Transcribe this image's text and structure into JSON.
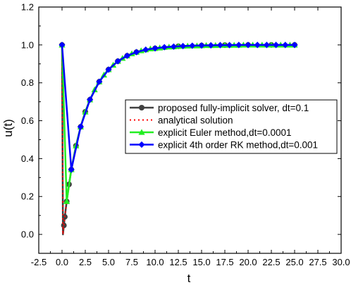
{
  "chart_data": {
    "type": "line",
    "xlabel": "t",
    "ylabel": "u(t)",
    "xlim": [
      -2.5,
      30.0
    ],
    "ylim": [
      -0.1,
      1.2
    ],
    "x_ticks": [
      "-2.5",
      "0.0",
      "2.5",
      "5.0",
      "7.5",
      "10.0",
      "12.5",
      "15.0",
      "17.5",
      "20.0",
      "22.5",
      "25.0",
      "27.5",
      "30.0"
    ],
    "y_ticks": [
      "0.0",
      "0.2",
      "0.4",
      "0.6",
      "0.8",
      "1.0",
      "1.2"
    ],
    "legend_position": "center-right",
    "series": [
      {
        "name": "proposed fully-implicit solver, dt=0.1",
        "color": "#404040",
        "line_style": "solid",
        "marker": "circle",
        "x": [
          0,
          0.1,
          0.2,
          0.3,
          0.5,
          0.75,
          1.0,
          1.5,
          2.0,
          2.5,
          3.0,
          4.0,
          5.0,
          6.0,
          7.0,
          8.0,
          10.0,
          12.5,
          15.0,
          17.5,
          20.0,
          22.5,
          25.0
        ],
        "y": [
          1.0,
          0.0,
          0.0477,
          0.0925,
          0.174,
          0.264,
          0.342,
          0.468,
          0.568,
          0.647,
          0.711,
          0.806,
          0.87,
          0.914,
          0.943,
          0.962,
          0.982,
          0.993,
          0.997,
          0.999,
          1.0,
          1.0,
          1.0
        ]
      },
      {
        "name": "analytical solution",
        "color": "#ff0000",
        "line_style": "dotted",
        "marker": "none",
        "x": [
          0,
          0.1,
          0.2,
          0.3,
          0.5,
          0.75,
          1.0,
          1.5,
          2.0,
          2.5,
          3.0,
          4.0,
          5.0,
          6.0,
          7.0,
          8.0,
          10.0,
          12.5,
          15.0,
          17.5,
          20.0,
          22.5,
          25.0
        ],
        "y": [
          1.0,
          0.0,
          0.0477,
          0.0925,
          0.174,
          0.264,
          0.342,
          0.468,
          0.568,
          0.647,
          0.711,
          0.806,
          0.87,
          0.914,
          0.943,
          0.962,
          0.982,
          0.993,
          0.997,
          0.999,
          1.0,
          1.0,
          1.0
        ]
      },
      {
        "name": "explicit Euler method,dt=0.0001",
        "color": "#22ee22",
        "line_style": "solid",
        "marker": "triangle",
        "x": [
          0,
          0.5,
          1.0,
          1.5,
          2.0,
          2.5,
          3.0,
          3.5,
          4.0,
          4.5,
          5.0,
          5.5,
          6.0,
          6.5,
          7.0,
          7.5,
          8.0,
          8.5,
          9.0,
          9.5,
          10.0,
          10.5,
          11.0,
          11.5,
          12.0,
          12.5,
          13.0,
          13.5,
          14.0,
          14.5,
          15.0,
          15.5,
          16.0,
          16.5,
          17.0,
          17.5,
          18.0,
          18.5,
          19.0,
          19.5,
          20.0,
          20.5,
          21.0,
          21.5,
          22.0,
          22.5,
          23.0,
          23.5,
          24.0,
          24.5,
          25.0
        ],
        "y": [
          1.0,
          0.174,
          0.342,
          0.468,
          0.568,
          0.647,
          0.711,
          0.764,
          0.806,
          0.842,
          0.87,
          0.894,
          0.914,
          0.93,
          0.943,
          0.954,
          0.962,
          0.97,
          0.975,
          0.98,
          0.982,
          0.985,
          0.988,
          0.99,
          0.991,
          0.993,
          0.994,
          0.995,
          0.996,
          0.996,
          0.997,
          0.998,
          0.998,
          0.998,
          0.999,
          0.999,
          0.999,
          0.999,
          0.999,
          1.0,
          1.0,
          1.0,
          1.0,
          1.0,
          1.0,
          1.0,
          1.0,
          1.0,
          1.0,
          1.0,
          1.0
        ]
      },
      {
        "name": "explicit 4th order RK method,dt=0.001",
        "color": "#0000ff",
        "line_style": "solid",
        "marker": "diamond",
        "x": [
          0,
          1.0,
          2.0,
          3.0,
          4.0,
          5.0,
          6.0,
          7.0,
          8.0,
          9.0,
          10.0,
          11.0,
          12.0,
          13.0,
          14.0,
          15.0,
          16.0,
          17.0,
          18.0,
          19.0,
          20.0,
          21.0,
          22.0,
          23.0,
          24.0,
          25.0
        ],
        "y": [
          1.0,
          0.342,
          0.568,
          0.711,
          0.806,
          0.87,
          0.914,
          0.943,
          0.962,
          0.975,
          0.982,
          0.988,
          0.991,
          0.994,
          0.996,
          0.997,
          0.998,
          0.999,
          0.999,
          1.0,
          1.0,
          1.0,
          1.0,
          1.0,
          1.0,
          1.0
        ]
      }
    ]
  }
}
